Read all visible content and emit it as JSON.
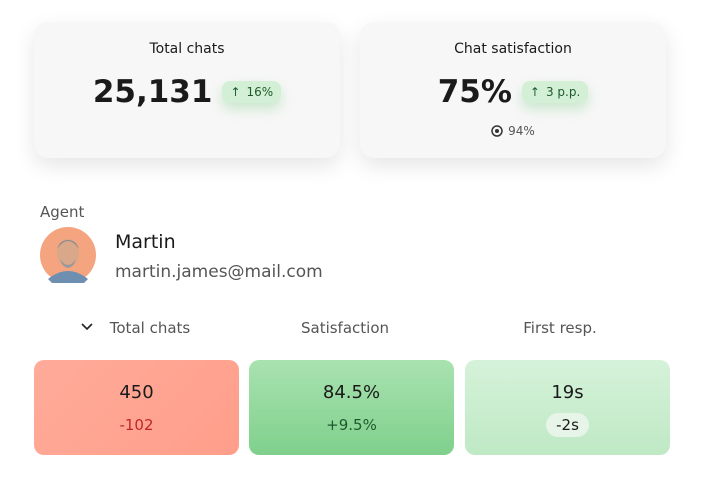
{
  "cards": [
    {
      "title": "Total chats",
      "value": "25,131",
      "change": "16%"
    },
    {
      "title": "Chat satisfaction",
      "value": "75%",
      "change": "3 p.p.",
      "target": "94%"
    }
  ],
  "agent": {
    "label": "Agent",
    "name": "Martin",
    "email": "martin.james@mail.com"
  },
  "columns": [
    "Total chats",
    "Satisfaction",
    "First resp."
  ],
  "metrics": [
    {
      "value": "450",
      "delta": "-102"
    },
    {
      "value": "84.5%",
      "delta": "+9.5%"
    },
    {
      "value": "19s",
      "delta": "-2s"
    }
  ]
}
